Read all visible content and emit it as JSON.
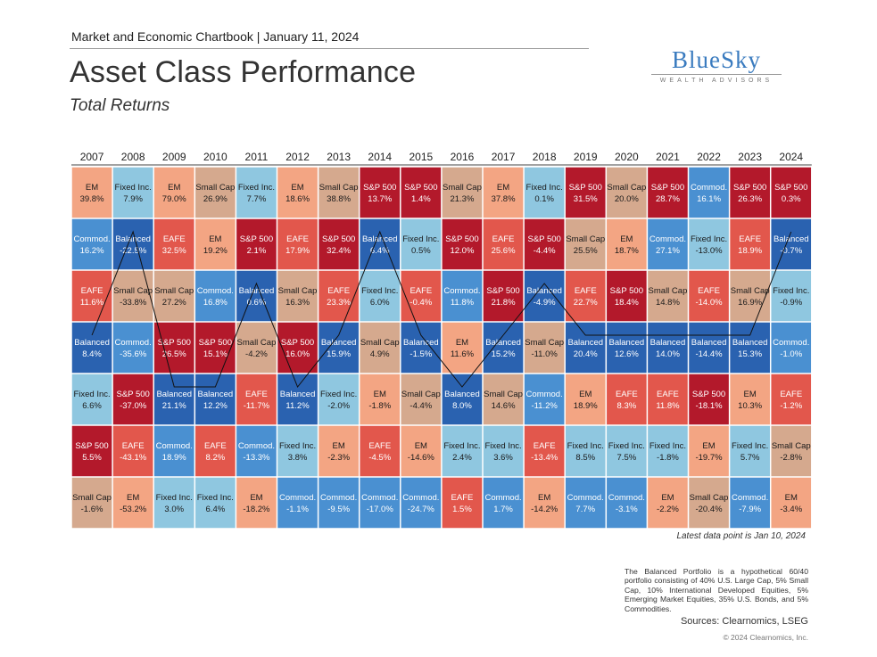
{
  "header": {
    "chartbook_label": "Market and Economic Chartbook | January 11, 2024",
    "title": "Asset Class Performance",
    "subtitle": "Total Returns"
  },
  "logo": {
    "name": "BlueSky",
    "tagline": "WEALTH ADVISORS"
  },
  "colors": {
    "S&P 500": "#b3192b",
    "Small Cap": "#d5a98e",
    "EAFE": "#e2574c",
    "EM": "#f3a583",
    "Fixed Inc.": "#8fc7e0",
    "Commod.": "#4a90d1",
    "Balanced": "#2a62b0"
  },
  "chart_data": {
    "type": "table",
    "years": [
      "2007",
      "2008",
      "2009",
      "2010",
      "2011",
      "2012",
      "2013",
      "2014",
      "2015",
      "2016",
      "2017",
      "2018",
      "2019",
      "2020",
      "2021",
      "2022",
      "2023",
      "2024"
    ],
    "columns": [
      [
        [
          "EM",
          "39.8%"
        ],
        [
          "Commod.",
          "16.2%"
        ],
        [
          "EAFE",
          "11.6%"
        ],
        [
          "Balanced",
          "8.4%"
        ],
        [
          "Fixed Inc.",
          "6.6%"
        ],
        [
          "S&P 500",
          "5.5%"
        ],
        [
          "Small Cap",
          "-1.6%"
        ]
      ],
      [
        [
          "Fixed Inc.",
          "7.9%"
        ],
        [
          "Balanced",
          "-22.5%"
        ],
        [
          "Small Cap",
          "-33.8%"
        ],
        [
          "Commod.",
          "-35.6%"
        ],
        [
          "S&P 500",
          "-37.0%"
        ],
        [
          "EAFE",
          "-43.1%"
        ],
        [
          "EM",
          "-53.2%"
        ]
      ],
      [
        [
          "EM",
          "79.0%"
        ],
        [
          "EAFE",
          "32.5%"
        ],
        [
          "Small Cap",
          "27.2%"
        ],
        [
          "S&P 500",
          "26.5%"
        ],
        [
          "Balanced",
          "21.1%"
        ],
        [
          "Commod.",
          "18.9%"
        ],
        [
          "Fixed Inc.",
          "3.0%"
        ]
      ],
      [
        [
          "Small Cap",
          "26.9%"
        ],
        [
          "EM",
          "19.2%"
        ],
        [
          "Commod.",
          "16.8%"
        ],
        [
          "S&P 500",
          "15.1%"
        ],
        [
          "Balanced",
          "12.2%"
        ],
        [
          "EAFE",
          "8.2%"
        ],
        [
          "Fixed Inc.",
          "6.4%"
        ]
      ],
      [
        [
          "Fixed Inc.",
          "7.7%"
        ],
        [
          "S&P 500",
          "2.1%"
        ],
        [
          "Balanced",
          "0.6%"
        ],
        [
          "Small Cap",
          "-4.2%"
        ],
        [
          "EAFE",
          "-11.7%"
        ],
        [
          "Commod.",
          "-13.3%"
        ],
        [
          "EM",
          "-18.2%"
        ]
      ],
      [
        [
          "EM",
          "18.6%"
        ],
        [
          "EAFE",
          "17.9%"
        ],
        [
          "Small Cap",
          "16.3%"
        ],
        [
          "S&P 500",
          "16.0%"
        ],
        [
          "Balanced",
          "11.2%"
        ],
        [
          "Fixed Inc.",
          "3.8%"
        ],
        [
          "Commod.",
          "-1.1%"
        ]
      ],
      [
        [
          "Small Cap",
          "38.8%"
        ],
        [
          "S&P 500",
          "32.4%"
        ],
        [
          "EAFE",
          "23.3%"
        ],
        [
          "Balanced",
          "15.9%"
        ],
        [
          "Fixed Inc.",
          "-2.0%"
        ],
        [
          "EM",
          "-2.3%"
        ],
        [
          "Commod.",
          "-9.5%"
        ]
      ],
      [
        [
          "S&P 500",
          "13.7%"
        ],
        [
          "Balanced",
          "6.4%"
        ],
        [
          "Fixed Inc.",
          "6.0%"
        ],
        [
          "Small Cap",
          "4.9%"
        ],
        [
          "EM",
          "-1.8%"
        ],
        [
          "EAFE",
          "-4.5%"
        ],
        [
          "Commod.",
          "-17.0%"
        ]
      ],
      [
        [
          "S&P 500",
          "1.4%"
        ],
        [
          "Fixed Inc.",
          "0.5%"
        ],
        [
          "EAFE",
          "-0.4%"
        ],
        [
          "Balanced",
          "-1.5%"
        ],
        [
          "Small Cap",
          "-4.4%"
        ],
        [
          "EM",
          "-14.6%"
        ],
        [
          "Commod.",
          "-24.7%"
        ]
      ],
      [
        [
          "Small Cap",
          "21.3%"
        ],
        [
          "S&P 500",
          "12.0%"
        ],
        [
          "Commod.",
          "11.8%"
        ],
        [
          "EM",
          "11.6%"
        ],
        [
          "Balanced",
          "8.0%"
        ],
        [
          "Fixed Inc.",
          "2.4%"
        ],
        [
          "EAFE",
          "1.5%"
        ]
      ],
      [
        [
          "EM",
          "37.8%"
        ],
        [
          "EAFE",
          "25.6%"
        ],
        [
          "S&P 500",
          "21.8%"
        ],
        [
          "Balanced",
          "15.2%"
        ],
        [
          "Small Cap",
          "14.6%"
        ],
        [
          "Fixed Inc.",
          "3.6%"
        ],
        [
          "Commod.",
          "1.7%"
        ]
      ],
      [
        [
          "Fixed Inc.",
          "0.1%"
        ],
        [
          "S&P 500",
          "-4.4%"
        ],
        [
          "Balanced",
          "-4.9%"
        ],
        [
          "Small Cap",
          "-11.0%"
        ],
        [
          "Commod.",
          "-11.2%"
        ],
        [
          "EAFE",
          "-13.4%"
        ],
        [
          "EM",
          "-14.2%"
        ]
      ],
      [
        [
          "S&P 500",
          "31.5%"
        ],
        [
          "Small Cap",
          "25.5%"
        ],
        [
          "EAFE",
          "22.7%"
        ],
        [
          "Balanced",
          "20.4%"
        ],
        [
          "EM",
          "18.9%"
        ],
        [
          "Fixed Inc.",
          "8.5%"
        ],
        [
          "Commod.",
          "7.7%"
        ]
      ],
      [
        [
          "Small Cap",
          "20.0%"
        ],
        [
          "EM",
          "18.7%"
        ],
        [
          "S&P 500",
          "18.4%"
        ],
        [
          "Balanced",
          "12.6%"
        ],
        [
          "EAFE",
          "8.3%"
        ],
        [
          "Fixed Inc.",
          "7.5%"
        ],
        [
          "Commod.",
          "-3.1%"
        ]
      ],
      [
        [
          "S&P 500",
          "28.7%"
        ],
        [
          "Commod.",
          "27.1%"
        ],
        [
          "Small Cap",
          "14.8%"
        ],
        [
          "Balanced",
          "14.0%"
        ],
        [
          "EAFE",
          "11.8%"
        ],
        [
          "Fixed Inc.",
          "-1.8%"
        ],
        [
          "EM",
          "-2.2%"
        ]
      ],
      [
        [
          "Commod.",
          "16.1%"
        ],
        [
          "Fixed Inc.",
          "-13.0%"
        ],
        [
          "EAFE",
          "-14.0%"
        ],
        [
          "Balanced",
          "-14.4%"
        ],
        [
          "S&P 500",
          "-18.1%"
        ],
        [
          "EM",
          "-19.7%"
        ],
        [
          "Small Cap",
          "-20.4%"
        ]
      ],
      [
        [
          "S&P 500",
          "26.3%"
        ],
        [
          "EAFE",
          "18.9%"
        ],
        [
          "Small Cap",
          "16.9%"
        ],
        [
          "Balanced",
          "15.3%"
        ],
        [
          "EM",
          "10.3%"
        ],
        [
          "Fixed Inc.",
          "5.7%"
        ],
        [
          "Commod.",
          "-7.9%"
        ]
      ],
      [
        [
          "S&P 500",
          "0.3%"
        ],
        [
          "Balanced",
          "-0.7%"
        ],
        [
          "Fixed Inc.",
          "-0.9%"
        ],
        [
          "Commod.",
          "-1.0%"
        ],
        [
          "EAFE",
          "-1.2%"
        ],
        [
          "Small Cap",
          "-2.8%"
        ],
        [
          "EM",
          "-3.4%"
        ]
      ]
    ],
    "highlight_series": "Balanced"
  },
  "footer": {
    "latest_data": "Latest data point is Jan 10, 2024",
    "note": "The Balanced Portfolio is a hypothetical 60/40 portfolio consisting of 40% U.S. Large Cap, 5% Small Cap, 10% International Developed Equities, 5% Emerging Market Equities, 35% U.S. Bonds, and 5% Commodities.",
    "sources": "Sources: Clearnomics, LSEG",
    "copyright": "© 2024 Clearnomics, Inc."
  }
}
